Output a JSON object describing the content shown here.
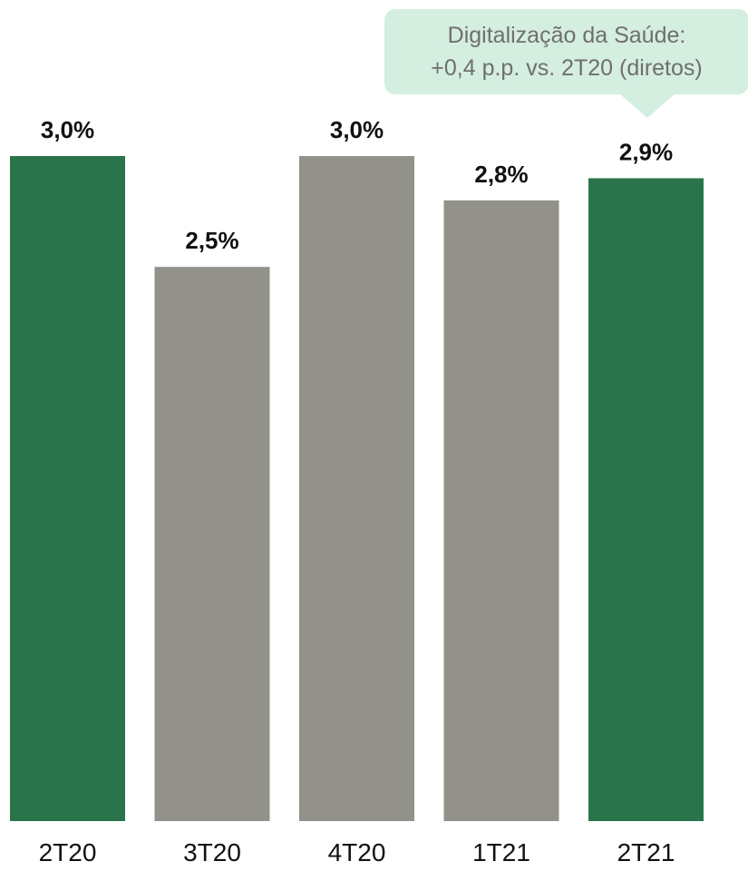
{
  "chart_data": {
    "type": "bar",
    "title": "",
    "xlabel": "",
    "ylabel": "",
    "categories": [
      "2T20",
      "3T20",
      "4T20",
      "1T21",
      "2T21"
    ],
    "values": [
      3.0,
      2.5,
      3.0,
      2.8,
      2.9
    ],
    "value_labels": [
      "3,0%",
      "2,5%",
      "3,0%",
      "2,8%",
      "2,9%"
    ],
    "bar_colors": [
      "#2a744c",
      "#92918a",
      "#92918a",
      "#92918a",
      "#2a744c"
    ],
    "ylim": [
      0,
      3.0
    ],
    "grid": false,
    "annotation": {
      "line1": "Digitalização da Saúde:",
      "line2": "+0,4 p.p. vs. 2T20 (diretos)",
      "target_category": "2T21",
      "background_color": "#d4eee0",
      "text_color": "#6f6f6f"
    }
  }
}
